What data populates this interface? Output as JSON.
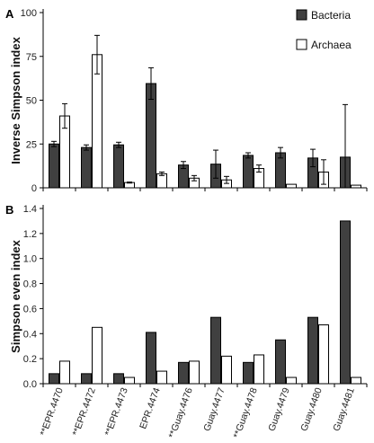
{
  "colors": {
    "bacteria": "#404040",
    "archaea": "#ffffff",
    "outline": "#000000"
  },
  "categories": [
    "**EPR.4470",
    "**EPR.4472",
    "**EPR.4473",
    "EPR.4474",
    "**Guay.4476",
    "Guay.4477",
    "**Guay.4478",
    "Guay.4479",
    "Guay.4480",
    "Guay.4481"
  ],
  "chart_data": [
    {
      "panel": "A",
      "type": "bar",
      "ylabel": "Inverse Simpson index",
      "ylim": [
        0,
        100
      ],
      "yticks": [
        "0",
        "25",
        "50",
        "75",
        "100"
      ],
      "legend": {
        "position": "top-right",
        "entries": [
          "Bacteria",
          "Archaea"
        ]
      },
      "series": [
        {
          "name": "Bacteria",
          "values": [
            25,
            23,
            24.5,
            59.5,
            13,
            13.5,
            18.5,
            20,
            17,
            17.5
          ],
          "errors": [
            1.5,
            1.5,
            1.5,
            9,
            2,
            8,
            1.5,
            3,
            5,
            30
          ]
        },
        {
          "name": "Archaea",
          "values": [
            41,
            76,
            3,
            8,
            5.5,
            4.5,
            11,
            2,
            9,
            1.5
          ],
          "errors": [
            7,
            11,
            0.3,
            1,
            1.5,
            2,
            2,
            0,
            7,
            0
          ]
        }
      ]
    },
    {
      "panel": "B",
      "type": "bar",
      "ylabel": "Simpson even index",
      "ylim": [
        0,
        1.4
      ],
      "yticks": [
        "0.0",
        "0.2",
        "0.4",
        "0.6",
        "0.8",
        "1.0",
        "1.2",
        "1.4"
      ],
      "series": [
        {
          "name": "Bacteria",
          "values": [
            0.08,
            0.08,
            0.08,
            0.41,
            0.17,
            0.53,
            0.17,
            0.35,
            0.53,
            1.3
          ]
        },
        {
          "name": "Archaea",
          "values": [
            0.18,
            0.45,
            0.05,
            0.1,
            0.18,
            0.22,
            0.23,
            0.05,
            0.47,
            0.05
          ]
        }
      ]
    }
  ]
}
